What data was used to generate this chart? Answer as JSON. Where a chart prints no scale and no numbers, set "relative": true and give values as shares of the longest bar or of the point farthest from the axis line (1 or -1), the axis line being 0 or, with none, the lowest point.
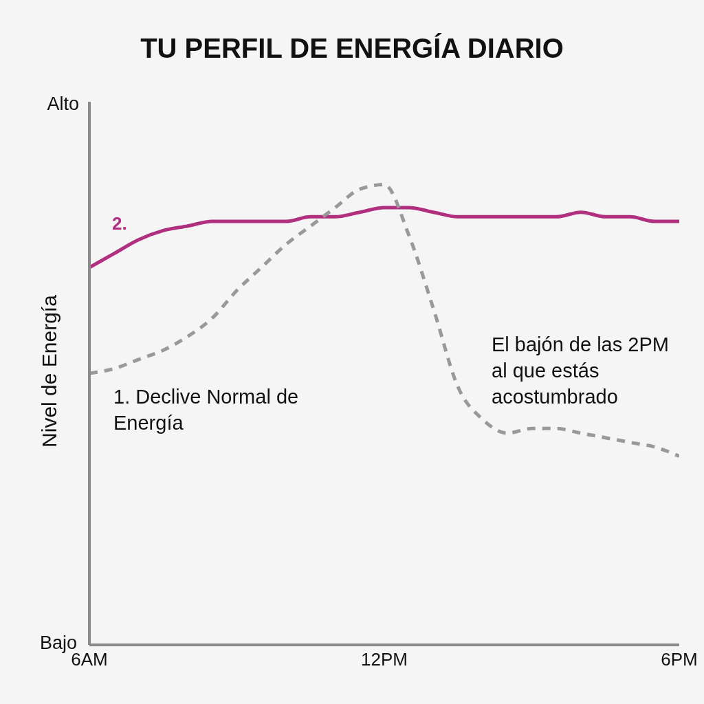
{
  "chart_data": {
    "type": "line",
    "title": "TU PERFIL DE ENERGÍA DIARIO",
    "ylabel": "Nivel de Energía",
    "categories": [
      "6AM",
      null,
      null,
      null,
      null,
      null,
      null,
      null,
      null,
      null,
      null,
      null,
      "12PM",
      null,
      null,
      null,
      null,
      null,
      null,
      null,
      null,
      null,
      null,
      null,
      "6PM"
    ],
    "relative": true,
    "marker": "none",
    "series": [
      {
        "color": "#b0307f",
        "line_style": "solid",
        "values": [
          0.82,
          0.85,
          0.88,
          0.9,
          0.91,
          0.92,
          0.92,
          0.92,
          0.92,
          0.93,
          0.93,
          0.94,
          0.95,
          0.95,
          0.94,
          0.93,
          0.93,
          0.93,
          0.93,
          0.93,
          0.94,
          0.93,
          0.93,
          0.92,
          0.92
        ]
      },
      {
        "color": "#999999",
        "line_style": "dashed",
        "values": [
          0.59,
          0.6,
          0.62,
          0.64,
          0.67,
          0.71,
          0.77,
          0.82,
          0.87,
          0.91,
          0.95,
          0.99,
          1,
          0.89,
          0.73,
          0.56,
          0.49,
          0.46,
          0.47,
          0.47,
          0.46,
          0.45,
          0.44,
          0.43,
          0.41
        ]
      }
    ],
    "annotations": [
      "Alto",
      "Bajo",
      "2.",
      "1. Declive Normal de Energía",
      "El bajón de las 2PM al que estás acostumbrado"
    ]
  }
}
